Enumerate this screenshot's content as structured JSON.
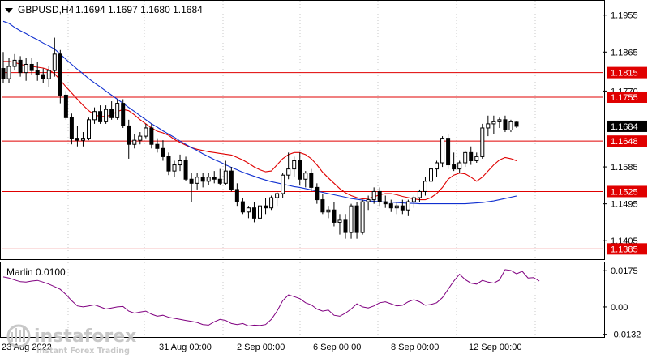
{
  "header": {
    "symbol": "GBPUSD,H4",
    "ohlc": "1.1694 1.1697 1.1680 1.1684"
  },
  "price_axis": {
    "ticks": [
      {
        "value": 1.1955,
        "label": "1.1955"
      },
      {
        "value": 1.1865,
        "label": "1.1865"
      },
      {
        "value": 1.177,
        "label": "1.1770"
      },
      {
        "value": 1.1585,
        "label": "1.1585"
      },
      {
        "value": 1.1495,
        "label": "1.1495"
      },
      {
        "value": 1.1405,
        "label": "1.1405"
      }
    ]
  },
  "time_axis": {
    "labels": [
      "23 Aug 2022",
      "31 Aug 00:00",
      "2 Sep 00:00",
      "6 Sep 00:00",
      "8 Sep 00:00",
      "12 Sep 00:00"
    ]
  },
  "levels": [
    {
      "value": 1.1815,
      "label": "1.1815"
    },
    {
      "value": 1.1755,
      "label": "1.1755"
    },
    {
      "value": 1.1648,
      "label": "1.1648"
    },
    {
      "value": 1.1525,
      "label": "1.1525"
    },
    {
      "value": 1.1385,
      "label": "1.1385"
    }
  ],
  "current_price": {
    "value": 1.1684,
    "label": "1.1684"
  },
  "indicator": {
    "name": "Marlin 0.0100",
    "ticks": [
      {
        "value": 0.0175,
        "label": "0.0175"
      },
      {
        "value": 0.0,
        "label": "0.00"
      },
      {
        "value": -0.0132,
        "label": "-0.0132"
      }
    ]
  },
  "watermark": {
    "brand": "instaforex",
    "tagline": "Instant Forex Trading"
  },
  "colors": {
    "ma_fast": "#e00000",
    "ma_slow": "#1030d0",
    "oscillator": "#800080",
    "level_line": "#e00000",
    "level_tag": "#e00000"
  },
  "chart_data": {
    "type": "candlestick",
    "ylim": [
      1.136,
      1.199
    ],
    "candles": [
      [
        1.1825,
        1.1865,
        1.179,
        1.18
      ],
      [
        1.18,
        1.185,
        1.179,
        1.183
      ],
      [
        1.183,
        1.186,
        1.182,
        1.1845
      ],
      [
        1.1845,
        1.1855,
        1.1805,
        1.1815
      ],
      [
        1.1815,
        1.185,
        1.1795,
        1.1835
      ],
      [
        1.1835,
        1.185,
        1.181,
        1.182
      ],
      [
        1.182,
        1.184,
        1.1795,
        1.181
      ],
      [
        1.181,
        1.1825,
        1.179,
        1.18
      ],
      [
        1.18,
        1.183,
        1.178,
        1.182
      ],
      [
        1.182,
        1.19,
        1.1805,
        1.186
      ],
      [
        1.186,
        1.187,
        1.174,
        1.176
      ],
      [
        1.176,
        1.177,
        1.17,
        1.1705
      ],
      [
        1.1705,
        1.1715,
        1.164,
        1.1655
      ],
      [
        1.1655,
        1.1685,
        1.1635,
        1.165
      ],
      [
        1.165,
        1.167,
        1.1635,
        1.1655
      ],
      [
        1.1655,
        1.1705,
        1.165,
        1.17
      ],
      [
        1.17,
        1.173,
        1.169,
        1.172
      ],
      [
        1.172,
        1.1735,
        1.169,
        1.1695
      ],
      [
        1.1695,
        1.1735,
        1.169,
        1.1725
      ],
      [
        1.1725,
        1.1745,
        1.17,
        1.1705
      ],
      [
        1.1705,
        1.175,
        1.17,
        1.174
      ],
      [
        1.174,
        1.175,
        1.168,
        1.1685
      ],
      [
        1.1685,
        1.17,
        1.1605,
        1.164
      ],
      [
        1.164,
        1.1665,
        1.163,
        1.165
      ],
      [
        1.165,
        1.167,
        1.164,
        1.166
      ],
      [
        1.166,
        1.169,
        1.1655,
        1.168
      ],
      [
        1.168,
        1.169,
        1.163,
        1.164
      ],
      [
        1.164,
        1.1655,
        1.162,
        1.163
      ],
      [
        1.163,
        1.165,
        1.16,
        1.161
      ],
      [
        1.161,
        1.162,
        1.1565,
        1.1575
      ],
      [
        1.1575,
        1.16,
        1.156,
        1.159
      ],
      [
        1.159,
        1.1615,
        1.1575,
        1.16
      ],
      [
        1.16,
        1.161,
        1.155,
        1.1555
      ],
      [
        1.1555,
        1.157,
        1.15,
        1.1545
      ],
      [
        1.1545,
        1.157,
        1.153,
        1.156
      ],
      [
        1.156,
        1.157,
        1.1535,
        1.155
      ],
      [
        1.155,
        1.157,
        1.154,
        1.156
      ],
      [
        1.156,
        1.1575,
        1.1545,
        1.1555
      ],
      [
        1.1555,
        1.158,
        1.154,
        1.1545
      ],
      [
        1.1545,
        1.16,
        1.154,
        1.1575
      ],
      [
        1.1575,
        1.1585,
        1.1525,
        1.153
      ],
      [
        1.153,
        1.1545,
        1.149,
        1.15
      ],
      [
        1.15,
        1.151,
        1.147,
        1.1475
      ],
      [
        1.1475,
        1.149,
        1.146,
        1.1485
      ],
      [
        1.1485,
        1.15,
        1.145,
        1.146
      ],
      [
        1.146,
        1.1495,
        1.145,
        1.149
      ],
      [
        1.149,
        1.151,
        1.147,
        1.1485
      ],
      [
        1.1485,
        1.1515,
        1.148,
        1.151
      ],
      [
        1.151,
        1.1525,
        1.149,
        1.152
      ],
      [
        1.152,
        1.157,
        1.151,
        1.1565
      ],
      [
        1.1565,
        1.162,
        1.1555,
        1.158
      ],
      [
        1.158,
        1.161,
        1.156,
        1.16
      ],
      [
        1.16,
        1.162,
        1.154,
        1.1555
      ],
      [
        1.1555,
        1.1575,
        1.1535,
        1.157
      ],
      [
        1.157,
        1.158,
        1.1525,
        1.1535
      ],
      [
        1.1535,
        1.1545,
        1.1495,
        1.1505
      ],
      [
        1.1505,
        1.152,
        1.147,
        1.1475
      ],
      [
        1.1475,
        1.149,
        1.146,
        1.148
      ],
      [
        1.148,
        1.15,
        1.144,
        1.145
      ],
      [
        1.145,
        1.147,
        1.142,
        1.1455
      ],
      [
        1.1455,
        1.147,
        1.141,
        1.1425
      ],
      [
        1.1425,
        1.1495,
        1.141,
        1.149
      ],
      [
        1.149,
        1.15,
        1.141,
        1.1425
      ],
      [
        1.1425,
        1.1505,
        1.142,
        1.15
      ],
      [
        1.15,
        1.1515,
        1.148,
        1.1505
      ],
      [
        1.1505,
        1.1535,
        1.1495,
        1.1525
      ],
      [
        1.1525,
        1.1535,
        1.149,
        1.15
      ],
      [
        1.15,
        1.1515,
        1.1485,
        1.1495
      ],
      [
        1.1495,
        1.1505,
        1.1475,
        1.1485
      ],
      [
        1.1485,
        1.15,
        1.147,
        1.149
      ],
      [
        1.149,
        1.1505,
        1.147,
        1.148
      ],
      [
        1.148,
        1.1505,
        1.1465,
        1.15
      ],
      [
        1.15,
        1.1515,
        1.1485,
        1.151
      ],
      [
        1.151,
        1.153,
        1.15,
        1.1525
      ],
      [
        1.1525,
        1.156,
        1.1515,
        1.155
      ],
      [
        1.155,
        1.159,
        1.1535,
        1.158
      ],
      [
        1.158,
        1.16,
        1.156,
        1.1595
      ],
      [
        1.1595,
        1.166,
        1.1585,
        1.1655
      ],
      [
        1.1655,
        1.1665,
        1.158,
        1.159
      ],
      [
        1.159,
        1.162,
        1.1575,
        1.158
      ],
      [
        1.158,
        1.16,
        1.157,
        1.1595
      ],
      [
        1.1595,
        1.1625,
        1.1585,
        1.162
      ],
      [
        1.162,
        1.1635,
        1.159,
        1.16
      ],
      [
        1.16,
        1.162,
        1.1595,
        1.161
      ],
      [
        1.161,
        1.169,
        1.1605,
        1.168
      ],
      [
        1.168,
        1.171,
        1.166,
        1.169
      ],
      [
        1.169,
        1.171,
        1.1665,
        1.1695
      ],
      [
        1.1695,
        1.1705,
        1.168,
        1.17
      ],
      [
        1.17,
        1.171,
        1.167,
        1.1675
      ],
      [
        1.1675,
        1.17,
        1.167,
        1.1695
      ],
      [
        1.1694,
        1.1697,
        1.168,
        1.1684
      ]
    ],
    "series": [
      {
        "name": "",
        "type": "line",
        "color": "#e00000",
        "start_index": 0,
        "values": [
          1.1842,
          1.1842,
          1.184,
          1.1835,
          1.1832,
          1.183,
          1.1828,
          1.1826,
          1.1822,
          1.1812,
          1.1797,
          1.178,
          1.1765,
          1.175,
          1.1735,
          1.1722,
          1.1712,
          1.1708,
          1.1708,
          1.1712,
          1.172,
          1.1725,
          1.1722,
          1.1712,
          1.17,
          1.169,
          1.168,
          1.1672,
          1.1668,
          1.1662,
          1.1652,
          1.1645,
          1.1638,
          1.1632,
          1.1628,
          1.1625,
          1.1622,
          1.162,
          1.1618,
          1.1616,
          1.1614,
          1.1608,
          1.1602,
          1.1594,
          1.1585,
          1.1578,
          1.1573,
          1.1575,
          1.159,
          1.1605,
          1.1615,
          1.162,
          1.162,
          1.1615,
          1.1605,
          1.159,
          1.1572,
          1.1558,
          1.1545,
          1.1532,
          1.1522,
          1.1515,
          1.151,
          1.1507,
          1.1508,
          1.1512,
          1.1517,
          1.152,
          1.152,
          1.1517,
          1.1513,
          1.151,
          1.1507,
          1.1505,
          1.1505,
          1.151,
          1.152,
          1.1535,
          1.1555,
          1.1565,
          1.157,
          1.1568,
          1.156,
          1.155,
          1.156,
          1.1575,
          1.159,
          1.1602,
          1.1608,
          1.1605,
          1.16
        ]
      },
      {
        "name": "",
        "type": "line",
        "color": "#1030d0",
        "start_index": 0,
        "values": [
          1.194,
          1.1935,
          1.1925,
          1.1917,
          1.191,
          1.1902,
          1.1895,
          1.1887,
          1.188,
          1.1872,
          1.186,
          1.1847,
          1.1835,
          1.1823,
          1.1812,
          1.18,
          1.179,
          1.178,
          1.177,
          1.176,
          1.175,
          1.174,
          1.173,
          1.172,
          1.171,
          1.17,
          1.169,
          1.1682,
          1.1673,
          1.1665,
          1.1657,
          1.1648,
          1.164,
          1.1632,
          1.1625,
          1.1617,
          1.161,
          1.1603,
          1.1597,
          1.159,
          1.1584,
          1.1578,
          1.1572,
          1.1567,
          1.1562,
          1.1557,
          1.1553,
          1.1549,
          1.1546,
          1.1543,
          1.154,
          1.1537,
          1.1535,
          1.1532,
          1.1529,
          1.1526,
          1.1523,
          1.152,
          1.1517,
          1.1514,
          1.1511,
          1.1508,
          1.1506,
          1.1504,
          1.1502,
          1.1501,
          1.15,
          1.1499,
          1.1499,
          1.1498,
          1.1497,
          1.1496,
          1.1496,
          1.1495,
          1.1495,
          1.1495,
          1.1495,
          1.1495,
          1.1495,
          1.1495,
          1.1495,
          1.1495,
          1.1496,
          1.1497,
          1.1498,
          1.15,
          1.1502,
          1.1505,
          1.1508,
          1.1511,
          1.1514
        ]
      }
    ],
    "oscillator": {
      "name": "Marlin 0.0100",
      "ylim": [
        -0.0145,
        0.0215
      ],
      "values": [
        0.0145,
        0.014,
        0.013,
        0.0122,
        0.012,
        0.0125,
        0.0128,
        0.012,
        0.011,
        0.0098,
        0.0085,
        0.006,
        0.003,
        0.0005,
        0.0,
        0.0005,
        0.001,
        0.0,
        -0.001,
        -0.0005,
        0.0,
        0.0002,
        -0.002,
        -0.003,
        -0.0025,
        -0.002,
        -0.0035,
        -0.0045,
        -0.004,
        -0.005,
        -0.0055,
        -0.006,
        -0.0065,
        -0.007,
        -0.0075,
        -0.0085,
        -0.0088,
        -0.0072,
        -0.006,
        -0.0065,
        -0.008,
        -0.0085,
        -0.008,
        -0.0092,
        -0.0088,
        -0.009,
        -0.0085,
        -0.006,
        -0.002,
        0.003,
        0.0058,
        0.005,
        0.004,
        0.002,
        0.001,
        -0.001,
        -0.002,
        -0.0015,
        -0.004,
        -0.0045,
        -0.003,
        -0.001,
        0.0015,
        0.0,
        -0.0005,
        0.0005,
        0.002,
        0.0025,
        0.0015,
        0.0005,
        0.0008,
        0.0025,
        0.0035,
        0.0025,
        0.0008,
        0.0012,
        0.002,
        0.0045,
        0.0085,
        0.0125,
        0.0158,
        0.0132,
        0.0115,
        0.011,
        0.0128,
        0.012,
        0.0115,
        0.013,
        0.018,
        0.0176,
        0.016,
        0.0172,
        0.014,
        0.0142,
        0.0125
      ]
    }
  }
}
